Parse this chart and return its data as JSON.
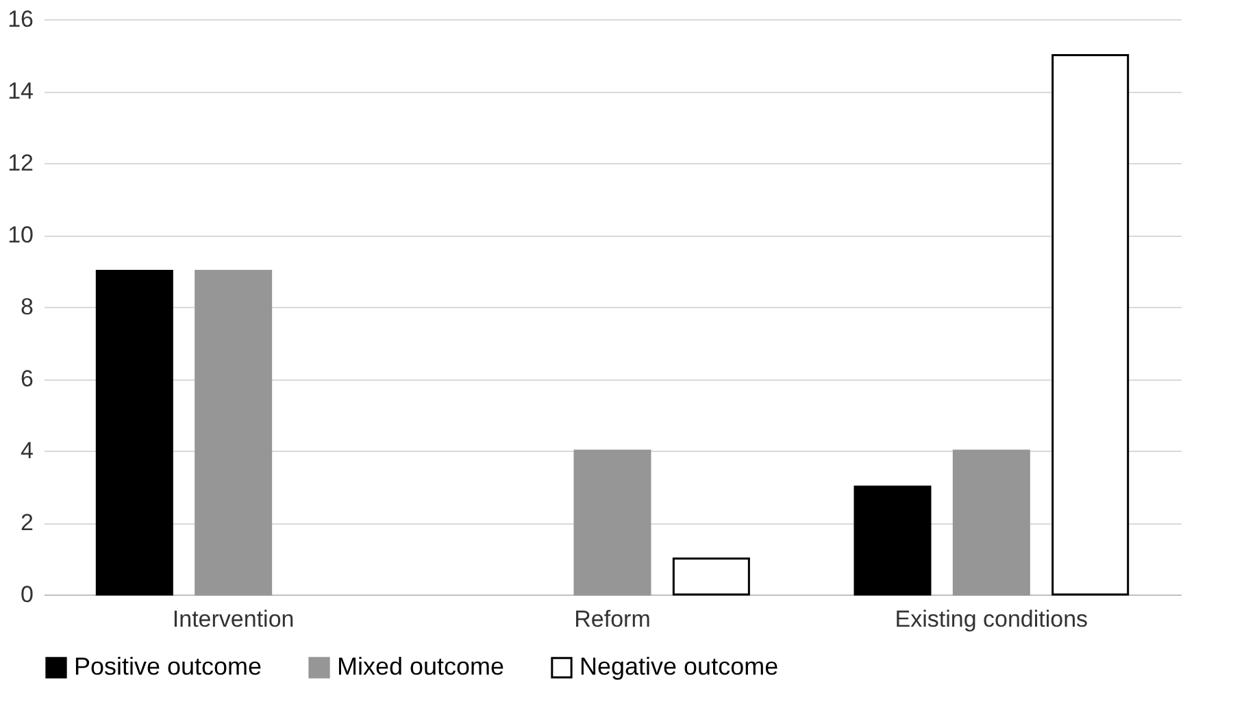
{
  "chart_data": {
    "type": "bar",
    "categories": [
      "Intervention",
      "Reform",
      "Existing conditions"
    ],
    "series": [
      {
        "name": "Positive outcome",
        "color": "#000000",
        "values": [
          9,
          null,
          3
        ]
      },
      {
        "name": "Mixed outcome",
        "color": "#969696",
        "values": [
          9,
          4,
          4
        ]
      },
      {
        "name": "Negative outcome",
        "color": "#ffffff",
        "values": [
          null,
          1,
          15
        ]
      }
    ],
    "ylim": [
      0,
      16
    ],
    "yticks": [
      0,
      2,
      4,
      6,
      8,
      10,
      12,
      14,
      16
    ],
    "grid": "y",
    "legend": "bottom"
  }
}
